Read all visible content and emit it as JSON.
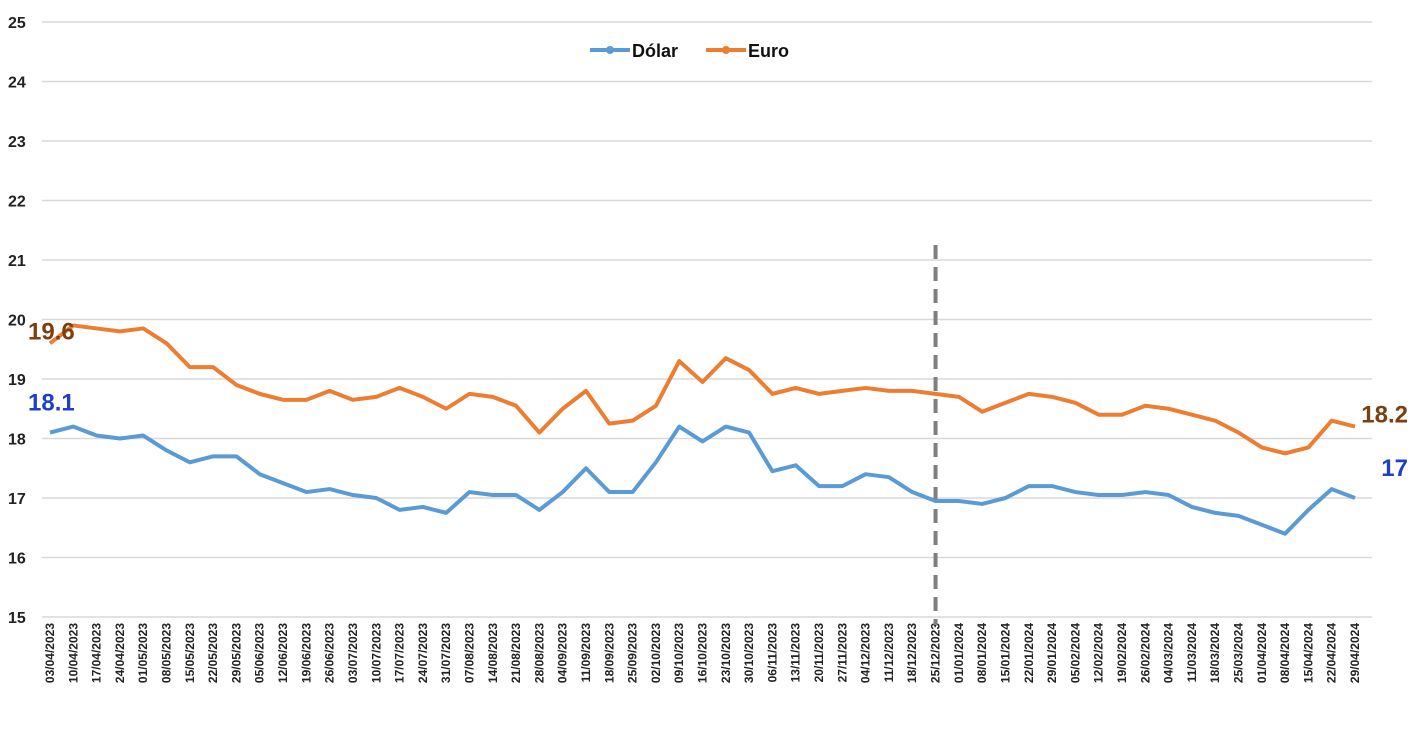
{
  "chart_data": {
    "type": "line",
    "categories": [
      "03/04/2023",
      "10/04/2023",
      "17/04/2023",
      "24/04/2023",
      "01/05/2023",
      "08/05/2023",
      "15/05/2023",
      "22/05/2023",
      "29/05/2023",
      "05/06/2023",
      "12/06/2023",
      "19/06/2023",
      "26/06/2023",
      "03/07/2023",
      "10/07/2023",
      "17/07/2023",
      "24/07/2023",
      "31/07/2023",
      "07/08/2023",
      "14/08/2023",
      "21/08/2023",
      "28/08/2023",
      "04/09/2023",
      "11/09/2023",
      "18/09/2023",
      "25/09/2023",
      "02/10/2023",
      "09/10/2023",
      "16/10/2023",
      "23/10/2023",
      "30/10/2023",
      "06/11/2023",
      "13/11/2023",
      "20/11/2023",
      "27/11/2023",
      "04/12/2023",
      "11/12/2023",
      "18/12/2023",
      "25/12/2023",
      "01/01/2024",
      "08/01/2024",
      "15/01/2024",
      "22/01/2024",
      "29/01/2024",
      "05/02/2024",
      "12/02/2024",
      "19/02/2024",
      "26/02/2024",
      "04/03/2024",
      "11/03/2024",
      "18/03/2024",
      "25/03/2024",
      "01/04/2024",
      "08/04/2024",
      "15/04/2024",
      "22/04/2024",
      "29/04/2024"
    ],
    "series": [
      {
        "name": "Dólar",
        "color": "#5b9bd5",
        "label_color": "#1f3fc9",
        "labeled_indices": [
          0,
          56
        ],
        "values": [
          18.1,
          18.2,
          18.05,
          18.0,
          18.05,
          17.8,
          17.6,
          17.7,
          17.7,
          17.4,
          17.25,
          17.1,
          17.15,
          17.05,
          17.0,
          16.8,
          16.85,
          16.75,
          17.1,
          17.05,
          17.05,
          16.8,
          17.1,
          17.5,
          17.1,
          17.1,
          17.6,
          18.2,
          17.95,
          18.2,
          18.1,
          17.45,
          17.55,
          17.2,
          17.2,
          17.4,
          17.35,
          17.1,
          16.95,
          16.95,
          16.9,
          17.0,
          17.2,
          17.2,
          17.1,
          17.05,
          17.05,
          17.1,
          17.05,
          16.85,
          16.75,
          16.7,
          16.55,
          16.4,
          16.8,
          17.15,
          17.0
        ]
      },
      {
        "name": "Euro",
        "color": "#ed7d31",
        "label_color": "#7b3f10",
        "labeled_indices": [
          0,
          56
        ],
        "values": [
          19.6,
          19.9,
          19.85,
          19.8,
          19.85,
          19.6,
          19.2,
          19.2,
          18.9,
          18.75,
          18.65,
          18.65,
          18.8,
          18.65,
          18.7,
          18.85,
          18.7,
          18.5,
          18.75,
          18.7,
          18.55,
          18.1,
          18.5,
          18.8,
          18.25,
          18.3,
          18.55,
          19.3,
          18.95,
          19.35,
          19.15,
          18.75,
          18.85,
          18.75,
          18.8,
          18.85,
          18.8,
          18.8,
          18.75,
          18.7,
          18.45,
          18.6,
          18.75,
          18.7,
          18.6,
          18.4,
          18.4,
          18.55,
          18.5,
          18.4,
          18.3,
          18.1,
          17.85,
          17.75,
          17.85,
          18.3,
          18.2
        ]
      }
    ],
    "ylim": [
      15,
      25
    ],
    "yticks": [
      15,
      16,
      17,
      18,
      19,
      20,
      21,
      22,
      23,
      24,
      25
    ],
    "grid": true,
    "vline": "25/12/2023",
    "legend": "top"
  }
}
